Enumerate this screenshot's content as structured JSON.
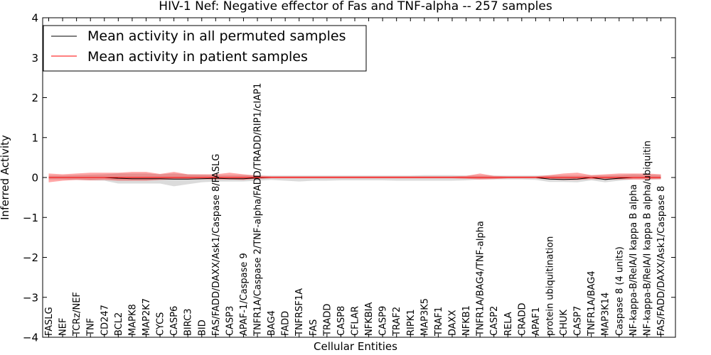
{
  "chart_data": {
    "type": "line",
    "title": "HIV-1 Nef: Negative effector of Fas and TNF-alpha -- 257 samples",
    "xlabel": "Cellular Entities",
    "ylabel": "Inferred Activity",
    "ylim": [
      -4,
      4
    ],
    "yticks": [
      -4,
      -3,
      -2,
      -1,
      0,
      1,
      2,
      3,
      4
    ],
    "ytick_labels": [
      "−4",
      "−3",
      "−2",
      "−1",
      "0",
      "1",
      "2",
      "3",
      "4"
    ],
    "legend_position": "upper-left",
    "categories": [
      "FASLG",
      "NEF",
      "TCRz/NEF",
      "TNF",
      "CD247",
      "BCL2",
      "MAPK8",
      "MAP2K7",
      "CYCS",
      "CASP6",
      "BIRC3",
      "BID",
      "FAS/FADD/DAXX/Ask1/Caspase 8/FASLG",
      "CASP3",
      "APAF-1/Caspase 9",
      "TNFR1A/Caspase 2/TNF-alpha/FADD/TRADD/RIP1/cIAP1",
      "BAG4",
      "FADD",
      "TNFRSF1A",
      "FAS",
      "TRADD",
      "CASP8",
      "CFLAR",
      "NFKBIA",
      "CASP9",
      "TRAF2",
      "RIPK1",
      "MAP3K5",
      "TRAF1",
      "DAXX",
      "NFKB1",
      "TNFR1A/BAG4/TNF-alpha",
      "CASP2",
      "RELA",
      "CRADD",
      "APAF1",
      "protein ubiquitination",
      "CHUK",
      "CASP7",
      "TNFR1A/BAG4",
      "MAP3K14",
      "Caspase 8 (4 units)",
      "NF-kappa-B/RelA/I kappa B alpha",
      "NF-kappa-B/RelA/I kappa B alpha/ubiquitin",
      "FAS/FADD/DAXX/Ask1/Caspase 8"
    ],
    "series": [
      {
        "name": "Mean activity in all permuted samples",
        "color": "#000000",
        "values": [
          0.0,
          0.0,
          0.0,
          0.0,
          0.0,
          -0.02,
          -0.03,
          -0.03,
          -0.03,
          -0.04,
          -0.04,
          -0.03,
          -0.02,
          -0.03,
          -0.03,
          -0.01,
          0.0,
          0.0,
          0.0,
          0.0,
          0.0,
          0.0,
          0.0,
          0.0,
          0.0,
          0.0,
          0.0,
          0.0,
          0.0,
          0.0,
          0.0,
          0.0,
          0.0,
          0.0,
          0.0,
          0.0,
          -0.04,
          -0.05,
          -0.04,
          0.0,
          -0.05,
          -0.02,
          0.0,
          0.0,
          0.0
        ],
        "band_low": [
          -0.05,
          -0.05,
          -0.06,
          -0.07,
          -0.08,
          -0.15,
          -0.15,
          -0.15,
          -0.15,
          -0.22,
          -0.17,
          -0.12,
          -0.1,
          -0.1,
          -0.1,
          -0.08,
          -0.06,
          -0.08,
          -0.1,
          -0.08,
          -0.08,
          -0.07,
          -0.07,
          -0.07,
          -0.07,
          -0.08,
          -0.08,
          -0.08,
          -0.08,
          -0.08,
          -0.07,
          -0.05,
          -0.05,
          -0.05,
          -0.05,
          -0.06,
          -0.11,
          -0.11,
          -0.12,
          -0.07,
          -0.12,
          -0.08,
          -0.05,
          -0.05,
          -0.05
        ],
        "band_high": [
          0.05,
          0.05,
          0.06,
          0.07,
          0.08,
          0.1,
          0.1,
          0.1,
          0.08,
          0.1,
          0.08,
          0.07,
          0.06,
          0.06,
          0.06,
          0.05,
          0.05,
          0.05,
          0.05,
          0.05,
          0.05,
          0.05,
          0.05,
          0.05,
          0.05,
          0.05,
          0.05,
          0.06,
          0.06,
          0.06,
          0.05,
          0.05,
          0.05,
          0.05,
          0.05,
          0.05,
          0.05,
          0.05,
          0.05,
          0.05,
          0.05,
          0.06,
          0.08,
          0.07,
          0.06
        ]
      },
      {
        "name": "Mean activity in patient samples",
        "color": "#ff0000",
        "values": [
          0.0,
          0.0,
          0.0,
          0.0,
          0.0,
          0.0,
          0.0,
          0.0,
          0.0,
          0.0,
          0.0,
          0.0,
          0.0,
          0.0,
          0.0,
          0.0,
          0.0,
          0.0,
          0.0,
          0.0,
          0.0,
          0.0,
          0.0,
          0.0,
          0.0,
          0.0,
          0.0,
          0.0,
          0.0,
          0.0,
          0.0,
          0.0,
          0.0,
          0.0,
          0.0,
          0.0,
          0.0,
          0.0,
          0.0,
          0.0,
          0.0,
          0.0,
          0.0,
          0.0,
          0.0
        ],
        "band_low": [
          -0.12,
          -0.08,
          -0.06,
          -0.07,
          -0.06,
          -0.08,
          -0.08,
          -0.08,
          -0.06,
          -0.05,
          -0.05,
          -0.04,
          -0.05,
          -0.05,
          -0.06,
          -0.03,
          -0.02,
          -0.02,
          -0.02,
          -0.02,
          -0.02,
          -0.02,
          -0.02,
          -0.02,
          -0.02,
          -0.02,
          -0.02,
          -0.02,
          -0.02,
          -0.02,
          -0.03,
          -0.05,
          -0.04,
          -0.02,
          -0.02,
          -0.02,
          -0.05,
          -0.06,
          -0.06,
          -0.04,
          -0.05,
          -0.05,
          -0.05,
          -0.05,
          -0.04
        ],
        "band_high": [
          0.1,
          0.08,
          0.1,
          0.12,
          0.12,
          0.12,
          0.14,
          0.14,
          0.09,
          0.14,
          0.08,
          0.08,
          0.08,
          0.12,
          0.08,
          0.05,
          0.03,
          0.03,
          0.03,
          0.03,
          0.03,
          0.03,
          0.03,
          0.03,
          0.03,
          0.03,
          0.03,
          0.03,
          0.03,
          0.03,
          0.04,
          0.1,
          0.04,
          0.03,
          0.03,
          0.03,
          0.06,
          0.1,
          0.12,
          0.06,
          0.08,
          0.1,
          0.1,
          0.1,
          0.08
        ]
      }
    ]
  }
}
